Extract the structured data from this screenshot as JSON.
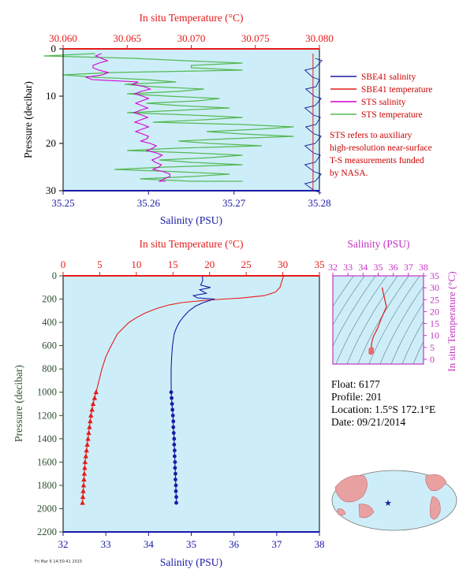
{
  "colors": {
    "salinity": "#1a1aa6",
    "temperature": "#e61a1a",
    "sts_salinity": "#d400d4",
    "sts_temperature": "#55b955",
    "plot_bg": "#cdeef8",
    "pressure_axis": "#2f4f2f",
    "ts_axis": "#c433c4"
  },
  "legend": {
    "items": [
      {
        "label": "SBE41 salinity",
        "color": "#1a1aa6"
      },
      {
        "label": "SBE41 temperature",
        "color": "#e61a1a"
      },
      {
        "label": "STS salinity",
        "color": "#d400d4"
      },
      {
        "label": "STS temperature",
        "color": "#55b955"
      }
    ],
    "note": [
      "STS refers to auxiliary",
      "high-resolution near-surface",
      "T-S measurements funded",
      "by NASA."
    ]
  },
  "float_info": {
    "float": "Float:  6177",
    "profile": "Profile:  201",
    "location": "Location:  1.5°S  172.1°E",
    "date": "Date:  09/21/2014"
  },
  "footer": "Fri Mar 6 14:50:41 2015",
  "chart_data": [
    {
      "type": "line",
      "name": "near-surface",
      "top_axis_label": "In situ Temperature (°C)",
      "bottom_axis_label": "Salinity (PSU)",
      "ylabel": "Pressure (decibar)",
      "top_ticks": [
        "30.060",
        "30.065",
        "30.070",
        "30.075",
        "30.080"
      ],
      "bottom_ticks": [
        "35.25",
        "35.26",
        "35.27",
        "35.28"
      ],
      "y_ticks": [
        "0",
        "10",
        "20",
        "30"
      ],
      "temp_lim": [
        30.06,
        30.08
      ],
      "sal_lim": [
        35.25,
        35.28
      ],
      "pressure_lim": [
        0,
        30
      ],
      "sbe41_salinity": {
        "pressure": [
          2,
          4,
          6,
          8,
          10,
          12,
          14,
          16,
          18,
          20,
          22,
          24,
          26,
          28,
          30
        ],
        "salinity": [
          35.2795,
          35.2795,
          35.2792,
          35.2796,
          35.2794,
          35.2795,
          35.2793,
          35.2796,
          35.2794,
          35.2795,
          35.2793,
          35.2795,
          35.2794,
          35.2795,
          35.2794
        ]
      },
      "sts_salinity": {
        "pressure": [
          1,
          2,
          3,
          4,
          5,
          6,
          7,
          8,
          9,
          10,
          11,
          12,
          13,
          14,
          15,
          16,
          17,
          18,
          19,
          20,
          21,
          22,
          23,
          24,
          25,
          26,
          27,
          28
        ],
        "salinity": [
          35.2545,
          35.2545,
          35.2542,
          35.2535,
          35.2553,
          35.2527,
          35.2588,
          35.2595,
          35.2591,
          35.2593,
          35.2592,
          35.2592,
          35.259,
          35.2592,
          35.2591,
          35.2593,
          35.2592,
          35.2593,
          35.2598,
          35.2602,
          35.2605,
          35.2609,
          35.2611,
          35.2608,
          35.2612,
          35.2618,
          35.2625,
          35.2613
        ]
      },
      "sts_temperature": {
        "pressure": [
          1,
          2,
          3,
          4,
          5,
          6,
          7,
          8,
          9,
          10,
          11,
          12,
          13,
          14,
          15,
          16,
          17,
          18,
          19,
          20,
          21,
          22,
          23,
          24,
          25,
          26,
          27,
          28
        ],
        "temperature": [
          30.0625,
          30.0655,
          30.074,
          30.07,
          30.064,
          30.0625,
          30.0688,
          30.067,
          30.069,
          30.0682,
          30.0705,
          30.069,
          30.069,
          30.07,
          30.071,
          30.074,
          30.0752,
          30.074,
          30.073,
          30.0715,
          30.069,
          30.07,
          30.0715,
          30.07,
          30.068,
          30.069,
          30.07,
          30.07
        ]
      },
      "sbe41_temperature": {
        "pressure": [
          1,
          30
        ],
        "temperature": [
          30.0795,
          30.0795
        ]
      }
    },
    {
      "type": "line",
      "name": "full-profile",
      "top_axis_label": "In situ Temperature (°C)",
      "bottom_axis_label": "Salinity (PSU)",
      "ylabel": "Pressure (decibar)",
      "top_ticks": [
        "0",
        "5",
        "10",
        "15",
        "20",
        "25",
        "30",
        "35"
      ],
      "bottom_ticks": [
        "32",
        "33",
        "34",
        "35",
        "36",
        "37",
        "38"
      ],
      "y_ticks": [
        "0",
        "200",
        "400",
        "600",
        "800",
        "1000",
        "1200",
        "1400",
        "1600",
        "1800",
        "2000",
        "2200"
      ],
      "temp_lim": [
        0,
        35
      ],
      "sal_lim": [
        32,
        38
      ],
      "pressure_lim": [
        0,
        2200
      ],
      "temperature": {
        "pressure": [
          5,
          20,
          60,
          100,
          140,
          170,
          190,
          200,
          210,
          220,
          230,
          250,
          280,
          320,
          360,
          400,
          450,
          500,
          560,
          620,
          700,
          800,
          900,
          1000,
          1050,
          1100,
          1150,
          1200,
          1250,
          1300,
          1350,
          1400,
          1450,
          1500,
          1550,
          1600,
          1650,
          1700,
          1750,
          1800,
          1850,
          1900,
          1950
        ],
        "values": [
          30.1,
          30.0,
          29.8,
          29.6,
          29.0,
          27.5,
          24.5,
          22.0,
          19.5,
          17.8,
          16.2,
          14.5,
          12.8,
          11.2,
          10.0,
          9.0,
          8.2,
          7.4,
          6.9,
          6.4,
          5.8,
          5.3,
          4.9,
          4.5,
          4.3,
          4.1,
          3.95,
          3.8,
          3.7,
          3.6,
          3.5,
          3.4,
          3.3,
          3.2,
          3.1,
          3.0,
          2.95,
          2.9,
          2.85,
          2.8,
          2.75,
          2.7,
          2.65
        ]
      },
      "salinity": {
        "pressure": [
          5,
          40,
          80,
          100,
          120,
          150,
          170,
          190,
          200,
          210,
          230,
          260,
          300,
          350,
          400,
          450,
          500,
          600,
          700,
          800,
          900,
          1000,
          1050,
          1100,
          1150,
          1200,
          1250,
          1300,
          1350,
          1400,
          1450,
          1500,
          1550,
          1600,
          1650,
          1700,
          1750,
          1800,
          1850,
          1900,
          1950
        ],
        "values": [
          35.26,
          35.27,
          35.22,
          35.45,
          35.2,
          35.35,
          35.05,
          35.15,
          35.55,
          35.45,
          35.28,
          35.1,
          34.95,
          34.82,
          34.72,
          34.65,
          34.6,
          34.56,
          34.54,
          34.53,
          34.53,
          34.53,
          34.54,
          34.55,
          34.56,
          34.57,
          34.58,
          34.58,
          34.59,
          34.6,
          34.6,
          34.61,
          34.61,
          34.62,
          34.62,
          34.63,
          34.63,
          34.64,
          34.64,
          34.65,
          34.65
        ]
      },
      "marker_pressures": [
        1000,
        1050,
        1100,
        1150,
        1200,
        1250,
        1300,
        1350,
        1400,
        1450,
        1500,
        1550,
        1600,
        1650,
        1700,
        1750,
        1800,
        1850,
        1900,
        1950
      ]
    },
    {
      "type": "line",
      "name": "t-s-diagram",
      "top_axis_label": "Salinity (PSU)",
      "right_axis_label": "In situ Temperature (°C)",
      "top_ticks": [
        "32",
        "33",
        "34",
        "35",
        "36",
        "37",
        "38"
      ],
      "right_ticks": [
        "0",
        "5",
        "10",
        "15",
        "20",
        "25",
        "30",
        "35"
      ],
      "sal_lim": [
        32,
        38
      ],
      "temp_lim": [
        -2,
        35
      ],
      "points_salinity": [
        35.26,
        35.3,
        35.55,
        35.2,
        35.05,
        34.95,
        34.82,
        34.72,
        34.62,
        34.56,
        34.54,
        34.53,
        34.58,
        34.62,
        34.65
      ],
      "points_temperature": [
        30.1,
        29.0,
        22.0,
        17.0,
        14.5,
        12.8,
        11.2,
        10.0,
        8.2,
        6.4,
        5.3,
        4.5,
        3.5,
        3.0,
        2.65
      ]
    }
  ]
}
